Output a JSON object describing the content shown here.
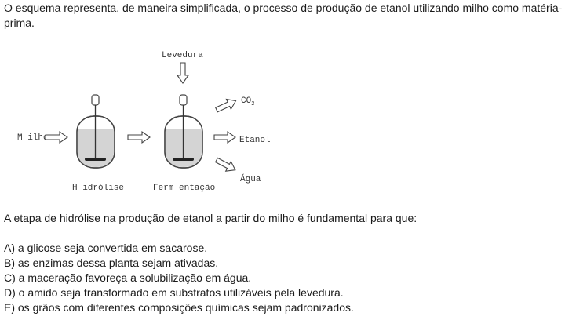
{
  "intro": "O esquema representa, de maneira simplificada, o processo de produção de etanol utilizando milho como matéria-prima.",
  "diagram": {
    "input_label": "M ilho",
    "yeast_label": "Levedura",
    "co2_label": "CO",
    "co2_subscript": "2",
    "ethanol_label": "Etanol",
    "water_label": "Água",
    "stage1_label": "H idrólise",
    "stage2_label": "Ferm entação"
  },
  "question": "A etapa de hidrólise na produção de etanol a partir do milho é fundamental para que:",
  "options": [
    "A) a glicose seja convertida em sacarose.",
    "B) as enzimas dessa planta sejam ativadas.",
    "C) a maceração favoreça a solubilização em água.",
    "D) o amido seja transformado em substratos utilizáveis pela levedura.",
    "E) os grãos com diferentes composições químicas sejam padronizados."
  ]
}
